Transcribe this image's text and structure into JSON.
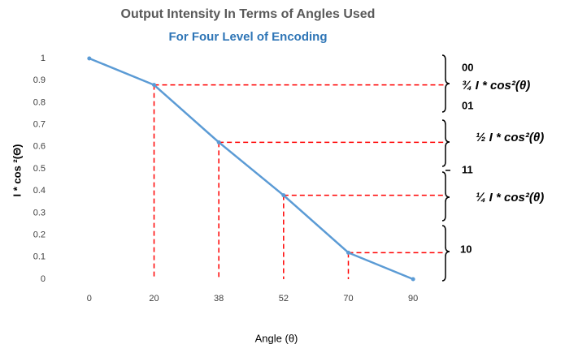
{
  "chart_data": {
    "type": "line",
    "title": "Output Intensity In Terms of Angles Used",
    "subtitle": "For Four Level of Encoding",
    "x_label": "Angle (θ)",
    "y_label": "I  * cos ²(Θ)",
    "categories": [
      "0",
      "20",
      "38",
      "52",
      "70",
      "90"
    ],
    "values": [
      1,
      0.88,
      0.62,
      0.38,
      0.12,
      0
    ],
    "color": "#5b9bd5",
    "guide_color": "#ff0000",
    "ylim": [
      0,
      1
    ],
    "yticks": [
      0,
      0.1,
      0.2,
      0.3,
      0.4,
      0.5,
      0.6,
      0.7,
      0.8,
      0.9,
      1
    ],
    "annotations": [
      "00",
      "¾ I * cos²(θ)",
      "01",
      "½ I * cos²(θ)",
      "11",
      "¼ I * cos²(θ)",
      "10"
    ]
  }
}
